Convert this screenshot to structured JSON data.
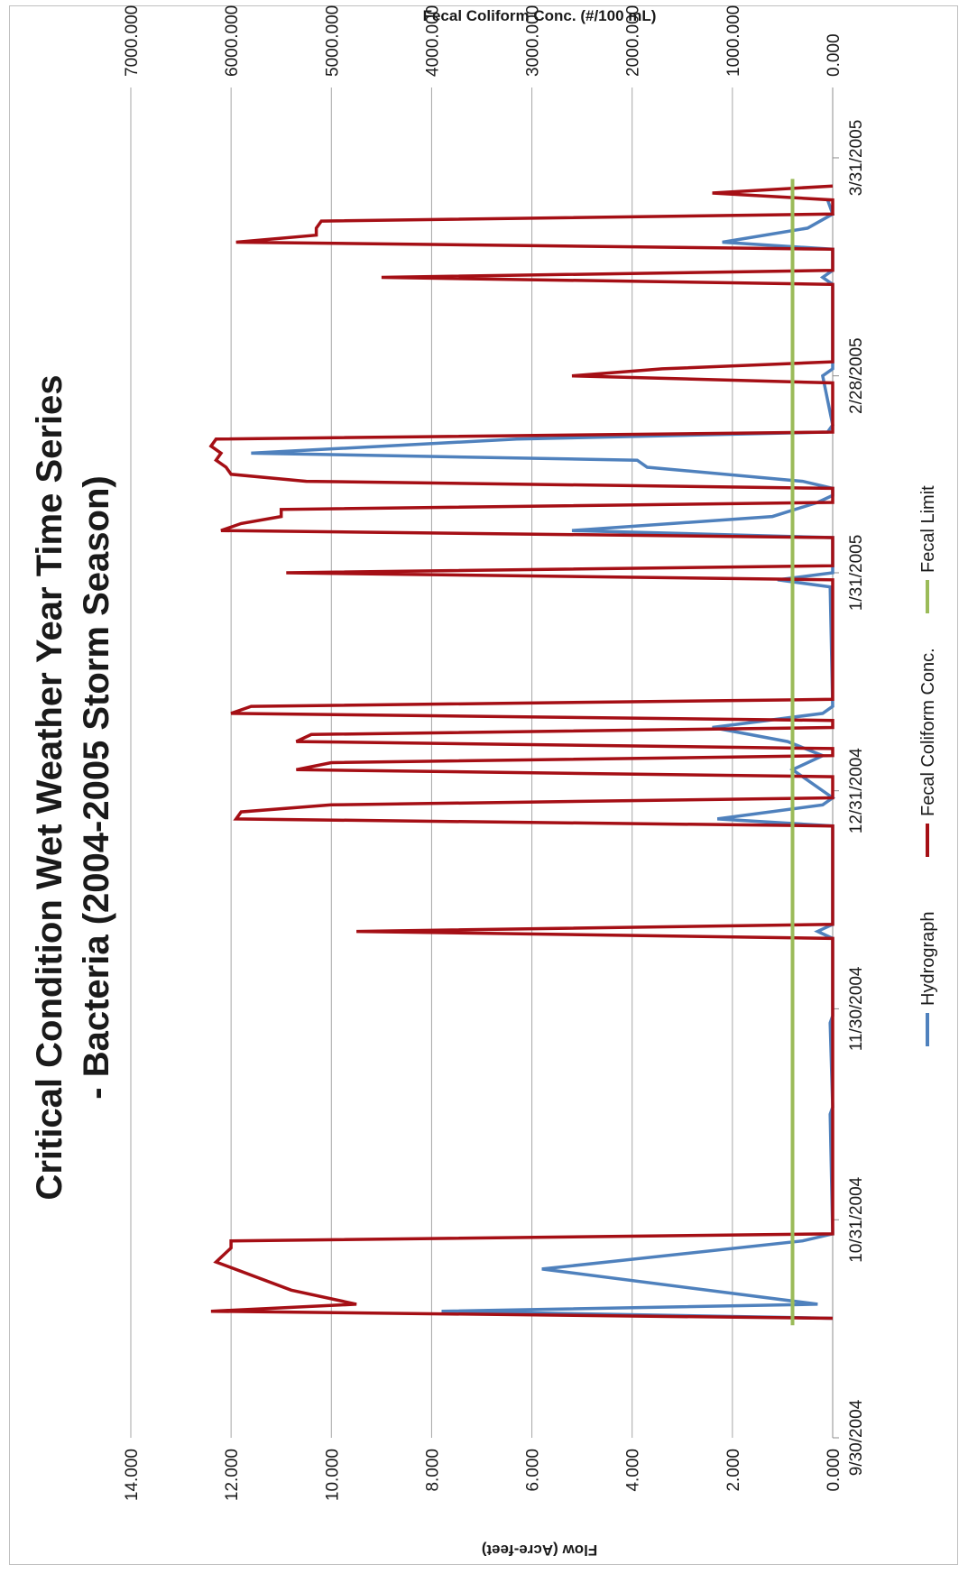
{
  "chart_data": {
    "type": "line",
    "title": "Critical Condition Wet Weather Year Time Series",
    "subtitle": "- Bacteria (2004-2005 Storm Season)",
    "xlabel": "",
    "ylabel": "Flow (Acre-feet)",
    "y2label": "Fecal Coliform Conc. (#/100 mL)",
    "x_ticks": [
      "9/30/2004",
      "10/31/2004",
      "11/30/2004",
      "12/31/2004",
      "1/31/2005",
      "2/28/2005",
      "3/31/2005"
    ],
    "xlim": [
      "2004-09-30",
      "2005-04-10"
    ],
    "ylim": [
      0,
      14
    ],
    "y_ticks": [
      "0.000",
      "2.000",
      "4.000",
      "6.000",
      "8.000",
      "10.000",
      "12.000",
      "14.000"
    ],
    "y2lim": [
      0,
      7000
    ],
    "y2_ticks": [
      "0.000",
      "1000.000",
      "2000.000",
      "3000.000",
      "4000.000",
      "5000.000",
      "6000.000",
      "7000.000"
    ],
    "grid": true,
    "legend_position": "bottom",
    "series": [
      {
        "name": "Hydrograph",
        "axis": "left",
        "color": "#4f81bd",
        "points": [
          [
            "2004-10-17",
            0
          ],
          [
            "2004-10-18",
            7.8
          ],
          [
            "2004-10-19",
            0.3
          ],
          [
            "2004-10-24",
            5.8
          ],
          [
            "2004-10-28",
            0.6
          ],
          [
            "2004-10-29",
            0
          ],
          [
            "2004-11-15",
            0.05
          ],
          [
            "2004-11-16",
            0
          ],
          [
            "2004-11-28",
            0.05
          ],
          [
            "2004-11-29",
            0
          ],
          [
            "2004-12-10",
            0
          ],
          [
            "2004-12-11",
            0.3
          ],
          [
            "2004-12-12",
            0
          ],
          [
            "2004-12-26",
            0
          ],
          [
            "2004-12-27",
            2.3
          ],
          [
            "2004-12-29",
            0.2
          ],
          [
            "2004-12-30",
            0
          ],
          [
            "2005-01-03",
            0.8
          ],
          [
            "2005-01-05",
            0.2
          ],
          [
            "2005-01-07",
            0.9
          ],
          [
            "2005-01-09",
            2.4
          ],
          [
            "2005-01-11",
            0.2
          ],
          [
            "2005-01-12",
            0
          ],
          [
            "2005-01-29",
            0.05
          ],
          [
            "2005-01-30",
            1.1
          ],
          [
            "2005-01-31",
            0
          ],
          [
            "2005-02-01",
            0
          ],
          [
            "2005-02-05",
            0
          ],
          [
            "2005-02-06",
            5.2
          ],
          [
            "2005-02-08",
            1.2
          ],
          [
            "2005-02-10",
            0.3
          ],
          [
            "2005-02-11",
            0
          ],
          [
            "2005-02-12",
            0
          ],
          [
            "2005-02-13",
            0.6
          ],
          [
            "2005-02-15",
            3.7
          ],
          [
            "2005-02-16",
            3.9
          ],
          [
            "2005-02-17",
            11.6
          ],
          [
            "2005-02-19",
            6.3
          ],
          [
            "2005-02-20",
            0.1
          ],
          [
            "2005-02-21",
            0
          ],
          [
            "2005-02-28",
            0.2
          ],
          [
            "2005-03-01",
            0
          ],
          [
            "2005-03-13",
            0
          ],
          [
            "2005-03-14",
            0.2
          ],
          [
            "2005-03-15",
            0
          ],
          [
            "2005-03-18",
            0
          ],
          [
            "2005-03-19",
            2.2
          ],
          [
            "2005-03-21",
            0.5
          ],
          [
            "2005-03-23",
            0
          ],
          [
            "2005-03-25",
            0.1
          ]
        ]
      },
      {
        "name": "Fecal Coliform Conc.",
        "axis": "right",
        "color": "#a50f15",
        "points": [
          [
            "2004-10-17",
            0
          ],
          [
            "2004-10-18",
            6200
          ],
          [
            "2004-10-19",
            4750
          ],
          [
            "2004-10-21",
            5400
          ],
          [
            "2004-10-25",
            6150
          ],
          [
            "2004-10-27",
            6000
          ],
          [
            "2004-10-28",
            6000
          ],
          [
            "2004-10-29",
            0
          ],
          [
            "2004-12-10",
            0
          ],
          [
            "2004-12-11",
            4750
          ],
          [
            "2004-12-12",
            0
          ],
          [
            "2004-12-26",
            0
          ],
          [
            "2004-12-27",
            5950
          ],
          [
            "2004-12-28",
            5900
          ],
          [
            "2004-12-29",
            5000
          ],
          [
            "2004-12-30",
            0
          ],
          [
            "2005-01-02",
            0
          ],
          [
            "2005-01-03",
            5350
          ],
          [
            "2005-01-04",
            5000
          ],
          [
            "2005-01-05",
            0
          ],
          [
            "2005-01-06",
            0
          ],
          [
            "2005-01-07",
            5350
          ],
          [
            "2005-01-08",
            5200
          ],
          [
            "2005-01-09",
            0
          ],
          [
            "2005-01-10",
            0
          ],
          [
            "2005-01-11",
            6000
          ],
          [
            "2005-01-12",
            5800
          ],
          [
            "2005-01-13",
            0
          ],
          [
            "2005-01-30",
            0
          ],
          [
            "2005-01-31",
            5450
          ],
          [
            "2005-02-01",
            0
          ],
          [
            "2005-02-05",
            0
          ],
          [
            "2005-02-06",
            6100
          ],
          [
            "2005-02-07",
            5900
          ],
          [
            "2005-02-08",
            5500
          ],
          [
            "2005-02-09",
            5500
          ],
          [
            "2005-02-10",
            0
          ],
          [
            "2005-02-12",
            0
          ],
          [
            "2005-02-13",
            5250
          ],
          [
            "2005-02-14",
            6000
          ],
          [
            "2005-02-15",
            6050
          ],
          [
            "2005-02-16",
            6150
          ],
          [
            "2005-02-17",
            6100
          ],
          [
            "2005-02-18",
            6200
          ],
          [
            "2005-02-19",
            6150
          ],
          [
            "2005-02-20",
            0
          ],
          [
            "2005-02-27",
            0
          ],
          [
            "2005-02-28",
            2600
          ],
          [
            "2005-03-01",
            1700
          ],
          [
            "2005-03-02",
            0
          ],
          [
            "2005-03-13",
            0
          ],
          [
            "2005-03-14",
            4500
          ],
          [
            "2005-03-15",
            0
          ],
          [
            "2005-03-18",
            0
          ],
          [
            "2005-03-19",
            5950
          ],
          [
            "2005-03-20",
            5150
          ],
          [
            "2005-03-21",
            5150
          ],
          [
            "2005-03-22",
            5100
          ],
          [
            "2005-03-23",
            0
          ],
          [
            "2005-03-25",
            0
          ],
          [
            "2005-03-26",
            1200
          ],
          [
            "2005-03-27",
            0
          ]
        ]
      },
      {
        "name": "Fecal Limit",
        "axis": "right",
        "color": "#9bbb59",
        "points": [
          [
            "2004-10-16",
            400
          ],
          [
            "2005-03-28",
            400
          ]
        ]
      }
    ]
  }
}
